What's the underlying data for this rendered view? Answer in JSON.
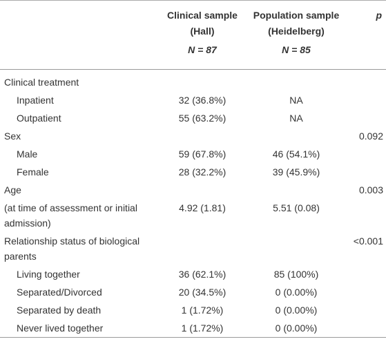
{
  "header": {
    "columns": [
      {
        "title": "Clinical sample",
        "subtitle": "(Hall)",
        "n": "N = 87"
      },
      {
        "title": "Population sample",
        "subtitle": "(Heidelberg)",
        "n": "N = 85"
      }
    ],
    "p": "p"
  },
  "sections": [
    {
      "label": "Clinical treatment",
      "rows": [
        {
          "label": "Inpatient",
          "clinical": "32 (36.8%)",
          "population": "NA"
        },
        {
          "label": "Outpatient",
          "clinical": "55 (63.2%)",
          "population": "NA"
        }
      ]
    },
    {
      "label": "Sex",
      "p": "0.092",
      "rows": [
        {
          "label": "Male",
          "clinical": "59 (67.8%)",
          "population": "46 (54.1%)"
        },
        {
          "label": "Female",
          "clinical": "28 (32.2%)",
          "population": "39 (45.9%)"
        }
      ]
    },
    {
      "label": "Age",
      "p": "0.003",
      "detail": {
        "label": "(at time of assessment or initial admission)",
        "clinical": "4.92 (1.81)",
        "population": "5.51 (0.08)"
      }
    },
    {
      "label": "Relationship status of biological parents",
      "p": "<0.001",
      "rows": [
        {
          "label": "Living together",
          "clinical": "36 (62.1%)",
          "population": "85 (100%)"
        },
        {
          "label": "Separated/Divorced",
          "clinical": "20 (34.5%)",
          "population": "0 (0.00%)"
        },
        {
          "label": "Separated by death",
          "clinical": "1 (1.72%)",
          "population": "0 (0.00%)"
        },
        {
          "label": "Never lived together",
          "clinical": "1 (1.72%)",
          "population": "0 (0.00%)"
        }
      ]
    }
  ]
}
